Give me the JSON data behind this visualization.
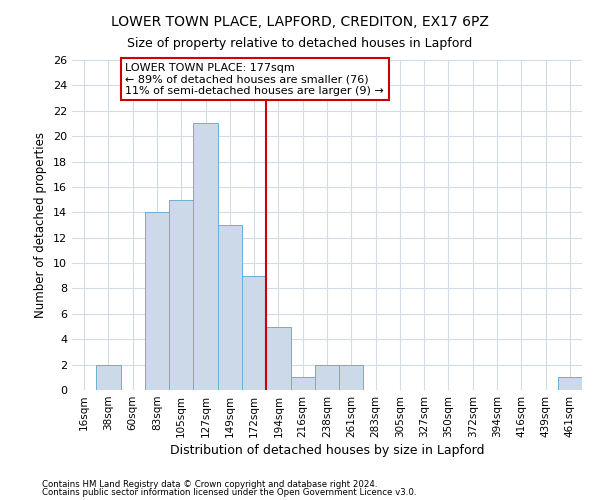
{
  "title1": "LOWER TOWN PLACE, LAPFORD, CREDITON, EX17 6PZ",
  "title2": "Size of property relative to detached houses in Lapford",
  "xlabel": "Distribution of detached houses by size in Lapford",
  "ylabel": "Number of detached properties",
  "bin_labels": [
    "16sqm",
    "38sqm",
    "60sqm",
    "83sqm",
    "105sqm",
    "127sqm",
    "149sqm",
    "172sqm",
    "194sqm",
    "216sqm",
    "238sqm",
    "261sqm",
    "283sqm",
    "305sqm",
    "327sqm",
    "350sqm",
    "372sqm",
    "394sqm",
    "416sqm",
    "439sqm",
    "461sqm"
  ],
  "bar_values": [
    0,
    2,
    0,
    14,
    15,
    21,
    13,
    9,
    5,
    1,
    2,
    2,
    0,
    0,
    0,
    0,
    0,
    0,
    0,
    0,
    1
  ],
  "bar_color": "#ccd9e8",
  "bar_edge_color": "#6baed6",
  "vline_x_index": 7,
  "vline_color": "#cc0000",
  "annotation_text": "LOWER TOWN PLACE: 177sqm\n← 89% of detached houses are smaller (76)\n11% of semi-detached houses are larger (9) →",
  "annotation_box_color": "white",
  "annotation_box_edge": "#cc0000",
  "ylim": [
    0,
    26
  ],
  "yticks": [
    0,
    2,
    4,
    6,
    8,
    10,
    12,
    14,
    16,
    18,
    20,
    22,
    24,
    26
  ],
  "footer1": "Contains HM Land Registry data © Crown copyright and database right 2024.",
  "footer2": "Contains public sector information licensed under the Open Government Licence v3.0.",
  "bg_color": "#ffffff",
  "grid_color": "#d0dce8",
  "title1_fontsize": 10,
  "title2_fontsize": 9
}
